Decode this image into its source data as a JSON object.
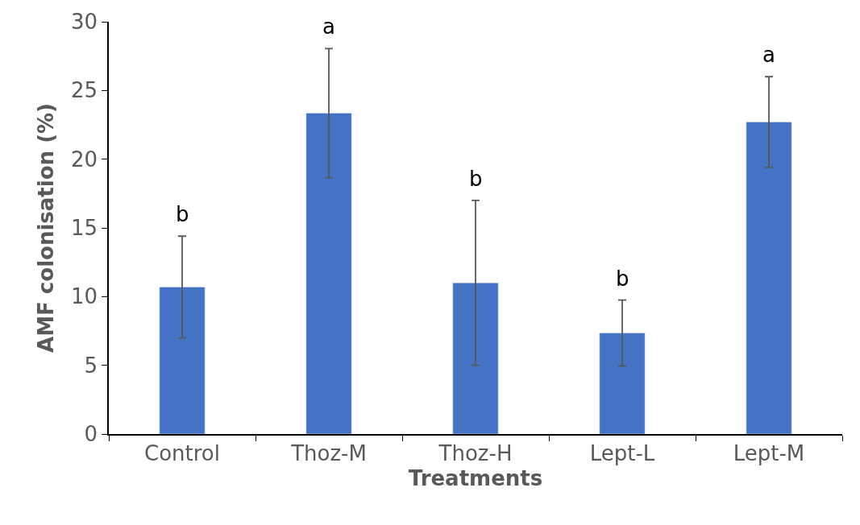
{
  "chart_data": {
    "type": "bar",
    "xlabel": "Treatments",
    "ylabel": "AMF colonisation (%)",
    "categories": [
      "Control",
      "Thoz-M",
      "Thoz-H",
      "Lept-L",
      "Lept-M"
    ],
    "series": [
      {
        "color": "#4472c4",
        "values": [
          10.7,
          23.35,
          11.0,
          7.35,
          22.7
        ],
        "errors": [
          3.7,
          4.7,
          6.0,
          2.4,
          3.3
        ]
      }
    ],
    "ylim": [
      0,
      30
    ],
    "yticks": [
      0,
      5,
      10,
      15,
      20,
      25,
      30
    ],
    "annotations": [
      "b",
      "a",
      "b",
      "b",
      "a"
    ]
  }
}
